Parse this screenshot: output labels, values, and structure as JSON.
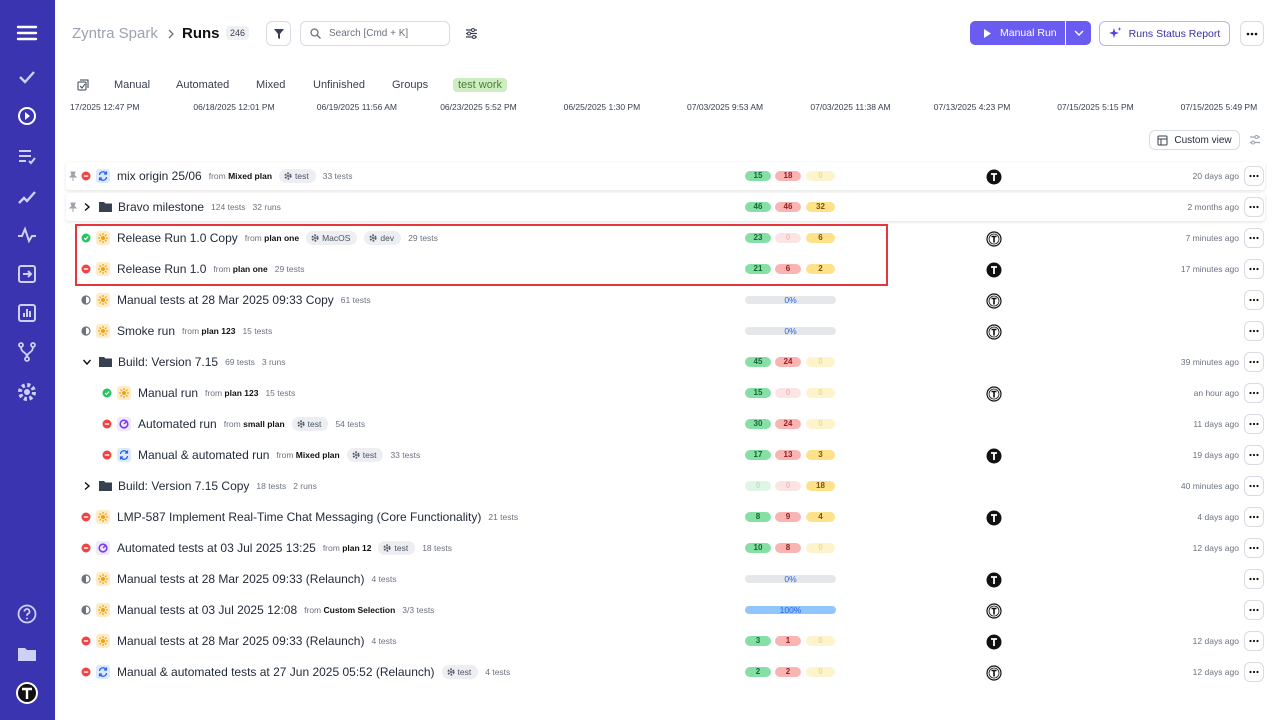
{
  "header": {
    "project": "Zyntra Spark",
    "title": "Runs",
    "count": "246",
    "search_placeholder": "Search [Cmd + K]",
    "primary_button": "Manual Run",
    "report_button": "Runs Status Report"
  },
  "tabs": [
    "Manual",
    "Automated",
    "Mixed",
    "Unfinished",
    "Groups",
    "test work"
  ],
  "timeline": [
    "17/2025 12:47 PM",
    "06/18/2025 12:01 PM",
    "06/19/2025 11:56 AM",
    "06/23/2025 5:52 PM",
    "06/25/2025 1:30 PM",
    "07/03/2025 9:53 AM",
    "07/03/2025 11:38 AM",
    "07/13/2025 4:23 PM",
    "07/15/2025 5:15 PM",
    "07/15/2025 5:49 PM"
  ],
  "custom_view": "Custom view",
  "rows": [
    {
      "kind": "run",
      "pinned": true,
      "status": "failed",
      "type": "mixed",
      "name": "mix origin 25/06",
      "source": {
        "prefix": "from",
        "plan": "Mixed plan"
      },
      "tags": [
        "test"
      ],
      "tests": "33 tests",
      "stats": [
        15,
        18,
        0
      ],
      "avatar": "dark",
      "time": "20 days ago"
    },
    {
      "kind": "folder",
      "pinned": true,
      "expanded": false,
      "name": "Bravo milestone",
      "tests": "124 tests",
      "runs": "32 runs",
      "stats": [
        46,
        46,
        32
      ],
      "time": "2 months ago"
    },
    {
      "kind": "run",
      "status": "passed",
      "type": "manual",
      "name": "Release Run 1.0 Copy",
      "source": {
        "prefix": "from",
        "plan": "plan one"
      },
      "tags": [
        "MacOS",
        "dev"
      ],
      "tests": "29 tests",
      "stats": [
        23,
        0,
        6
      ],
      "avatar": "outline",
      "time": "7 minutes ago"
    },
    {
      "kind": "run",
      "status": "failed",
      "type": "manual",
      "name": "Release Run 1.0",
      "source": {
        "prefix": "from",
        "plan": "plan one"
      },
      "tests": "29 tests",
      "stats": [
        21,
        6,
        2
      ],
      "avatar": "dark",
      "time": "17 minutes ago"
    },
    {
      "kind": "run",
      "status": "unfinished",
      "type": "manual",
      "name": "Manual tests at 28 Mar 2025 09:33 Copy",
      "tests": "61 tests",
      "progress": {
        "value": 0,
        "label": "0%"
      },
      "avatar": "outline"
    },
    {
      "kind": "run",
      "status": "unfinished",
      "type": "manual",
      "name": "Smoke run",
      "source": {
        "prefix": "from",
        "plan": "plan 123"
      },
      "tests": "15 tests",
      "progress": {
        "value": 0,
        "label": "0%"
      },
      "avatar": "outline"
    },
    {
      "kind": "folder",
      "expanded": true,
      "name": "Build: Version 7.15",
      "tests": "69 tests",
      "runs": "3 runs",
      "stats": [
        45,
        24,
        0
      ],
      "time": "39 minutes ago"
    },
    {
      "kind": "run",
      "indent": true,
      "status": "passed",
      "type": "manual",
      "name": "Manual run",
      "source": {
        "prefix": "from",
        "plan": "plan 123"
      },
      "tests": "15 tests",
      "stats": [
        15,
        0,
        0
      ],
      "avatar": "outline",
      "time": "an hour ago"
    },
    {
      "kind": "run",
      "indent": true,
      "status": "failed",
      "type": "automated",
      "name": "Automated run",
      "source": {
        "prefix": "from",
        "plan": "small plan"
      },
      "tags": [
        "test"
      ],
      "tests": "54 tests",
      "stats": [
        30,
        24,
        0
      ],
      "time": "11 days ago"
    },
    {
      "kind": "run",
      "indent": true,
      "status": "failed",
      "type": "mixed",
      "name": "Manual & automated run",
      "source": {
        "prefix": "from",
        "plan": "Mixed plan"
      },
      "tags": [
        "test"
      ],
      "tests": "33 tests",
      "stats": [
        17,
        13,
        3
      ],
      "avatar": "dark",
      "time": "19 days ago"
    },
    {
      "kind": "folder",
      "expanded": false,
      "name": "Build: Version 7.15 Copy",
      "tests": "18 tests",
      "runs": "2 runs",
      "stats": [
        0,
        0,
        18
      ],
      "time": "40 minutes ago"
    },
    {
      "kind": "run",
      "status": "failed",
      "type": "manual",
      "name": "LMP-587 Implement Real-Time Chat Messaging (Core Functionality)",
      "tests": "21 tests",
      "stats": [
        8,
        9,
        4
      ],
      "avatar": "dark",
      "time": "4 days ago"
    },
    {
      "kind": "run",
      "status": "failed",
      "type": "automated",
      "name": "Automated tests at 03 Jul 2025 13:25",
      "source": {
        "prefix": "from",
        "plan": "plan 12"
      },
      "tags": [
        "test"
      ],
      "tests": "18 tests",
      "stats": [
        10,
        8,
        0
      ],
      "time": "12 days ago"
    },
    {
      "kind": "run",
      "status": "unfinished",
      "type": "manual",
      "name": "Manual tests at 28 Mar 2025 09:33 (Relaunch)",
      "tests": "4 tests",
      "progress": {
        "value": 0,
        "label": "0%"
      },
      "avatar": "dark"
    },
    {
      "kind": "run",
      "status": "unfinished",
      "type": "manual",
      "name": "Manual tests at 03 Jul 2025 12:08",
      "source": {
        "prefix": "from",
        "plan": "Custom Selection"
      },
      "tests": "3/3 tests",
      "progress": {
        "value": 100,
        "label": "100%"
      },
      "avatar": "outline"
    },
    {
      "kind": "run",
      "status": "failed",
      "type": "manual",
      "name": "Manual tests at 28 Mar 2025 09:33 (Relaunch)",
      "tests": "4 tests",
      "stats": [
        3,
        1,
        0
      ],
      "avatar": "dark",
      "time": "12 days ago"
    },
    {
      "kind": "run",
      "status": "failed",
      "type": "mixed",
      "name": "Manual & automated tests at 27 Jun 2025 05:52 (Relaunch)",
      "tags": [
        "test"
      ],
      "tests": "4 tests",
      "stats": [
        2,
        2,
        0
      ],
      "avatar": "outline",
      "time": "12 days ago"
    }
  ]
}
